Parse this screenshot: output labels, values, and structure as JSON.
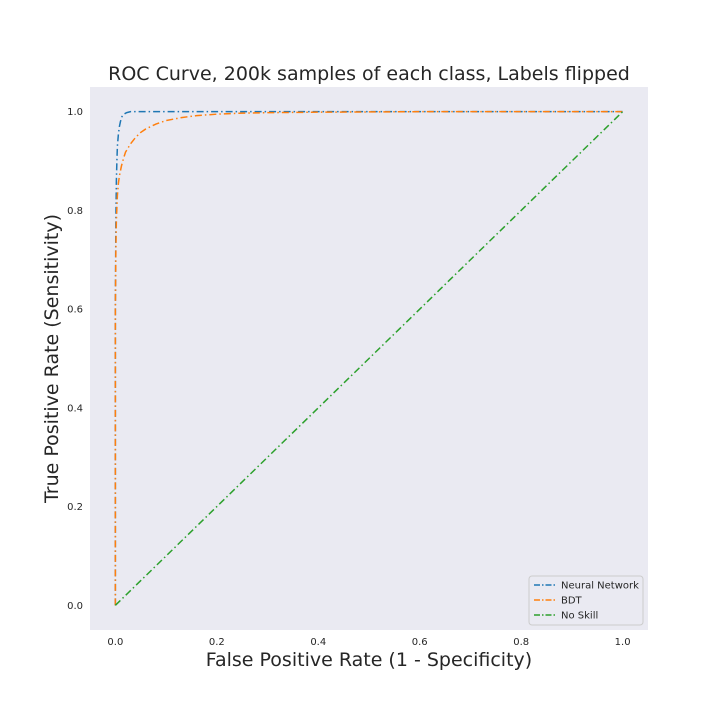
{
  "chart_data": {
    "type": "line",
    "title": "ROC Curve, 200k samples of each class, Labels flipped",
    "xlabel": "False Positive Rate (1 - Specificity)",
    "ylabel": "True Positive Rate (Sensitivity)",
    "xlim": [
      -0.05,
      1.05
    ],
    "ylim": [
      -0.05,
      1.05
    ],
    "xticks": [
      0.0,
      0.2,
      0.4,
      0.6,
      0.8,
      1.0
    ],
    "yticks": [
      0.0,
      0.2,
      0.4,
      0.6,
      0.8,
      1.0
    ],
    "xtick_labels": [
      "0.0",
      "0.2",
      "0.4",
      "0.6",
      "0.8",
      "1.0"
    ],
    "ytick_labels": [
      "0.0",
      "0.2",
      "0.4",
      "0.6",
      "0.8",
      "1.0"
    ],
    "grid": false,
    "background": "#eaeaf2",
    "line_style": "dash-dot",
    "legend_position": "lower-right",
    "series": [
      {
        "name": "Neural Network",
        "color": "#1f77b4",
        "x": [
          0.0,
          0.0,
          0.001,
          0.002,
          0.003,
          0.004,
          0.006,
          0.008,
          0.01,
          0.013,
          0.017,
          0.022,
          0.03,
          0.05,
          0.1,
          0.2,
          0.4,
          0.7,
          1.0
        ],
        "y": [
          0.0,
          0.6,
          0.78,
          0.86,
          0.9,
          0.93,
          0.955,
          0.97,
          0.98,
          0.99,
          0.995,
          0.998,
          1.0,
          1.0,
          1.0,
          1.0,
          1.0,
          1.0,
          1.0
        ]
      },
      {
        "name": "BDT",
        "color": "#ff7f0e",
        "x": [
          0.0,
          0.0,
          0.001,
          0.002,
          0.004,
          0.006,
          0.008,
          0.012,
          0.016,
          0.02,
          0.03,
          0.04,
          0.05,
          0.06,
          0.08,
          0.1,
          0.13,
          0.16,
          0.2,
          0.25,
          0.3,
          0.4,
          0.6,
          0.8,
          1.0
        ],
        "y": [
          0.0,
          0.6,
          0.72,
          0.78,
          0.83,
          0.855,
          0.87,
          0.89,
          0.905,
          0.918,
          0.935,
          0.948,
          0.958,
          0.965,
          0.975,
          0.982,
          0.988,
          0.992,
          0.995,
          0.997,
          0.998,
          0.999,
          1.0,
          1.0,
          1.0
        ]
      },
      {
        "name": "No Skill",
        "color": "#2ca02c",
        "x": [
          0.0,
          1.0
        ],
        "y": [
          0.0,
          1.0
        ]
      }
    ]
  }
}
